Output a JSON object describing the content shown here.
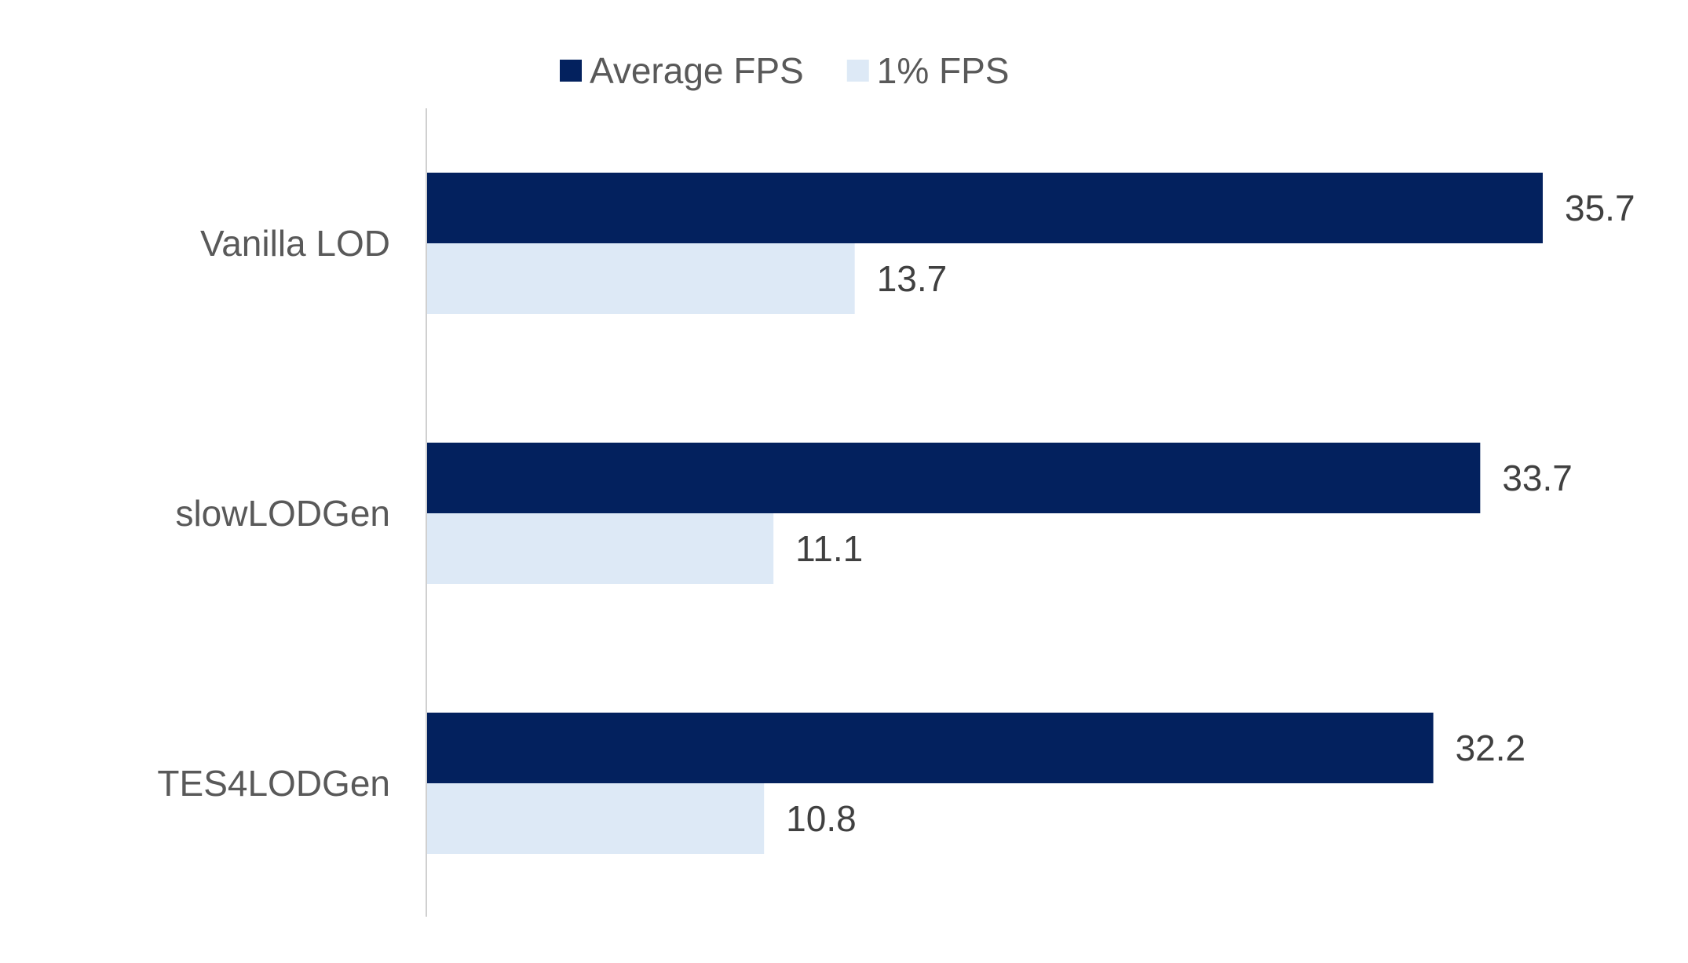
{
  "chart_data": {
    "type": "bar",
    "orientation": "horizontal",
    "title": "",
    "xlabel": "",
    "ylabel": "",
    "categories": [
      "Vanilla LOD",
      "slowLODGen",
      "TES4LODGen"
    ],
    "series": [
      {
        "name": "Average FPS",
        "color": "#03215E",
        "values": [
          35.7,
          33.7,
          32.2
        ]
      },
      {
        "name": "1% FPS",
        "color": "#DDE9F6",
        "values": [
          13.7,
          11.1,
          10.8
        ]
      }
    ],
    "xlim": [
      0,
      35.7
    ],
    "grid": false,
    "legend_position": "top-center",
    "data_labels": true,
    "text_color": "#595959",
    "axis_color": "#D0D0D0"
  }
}
